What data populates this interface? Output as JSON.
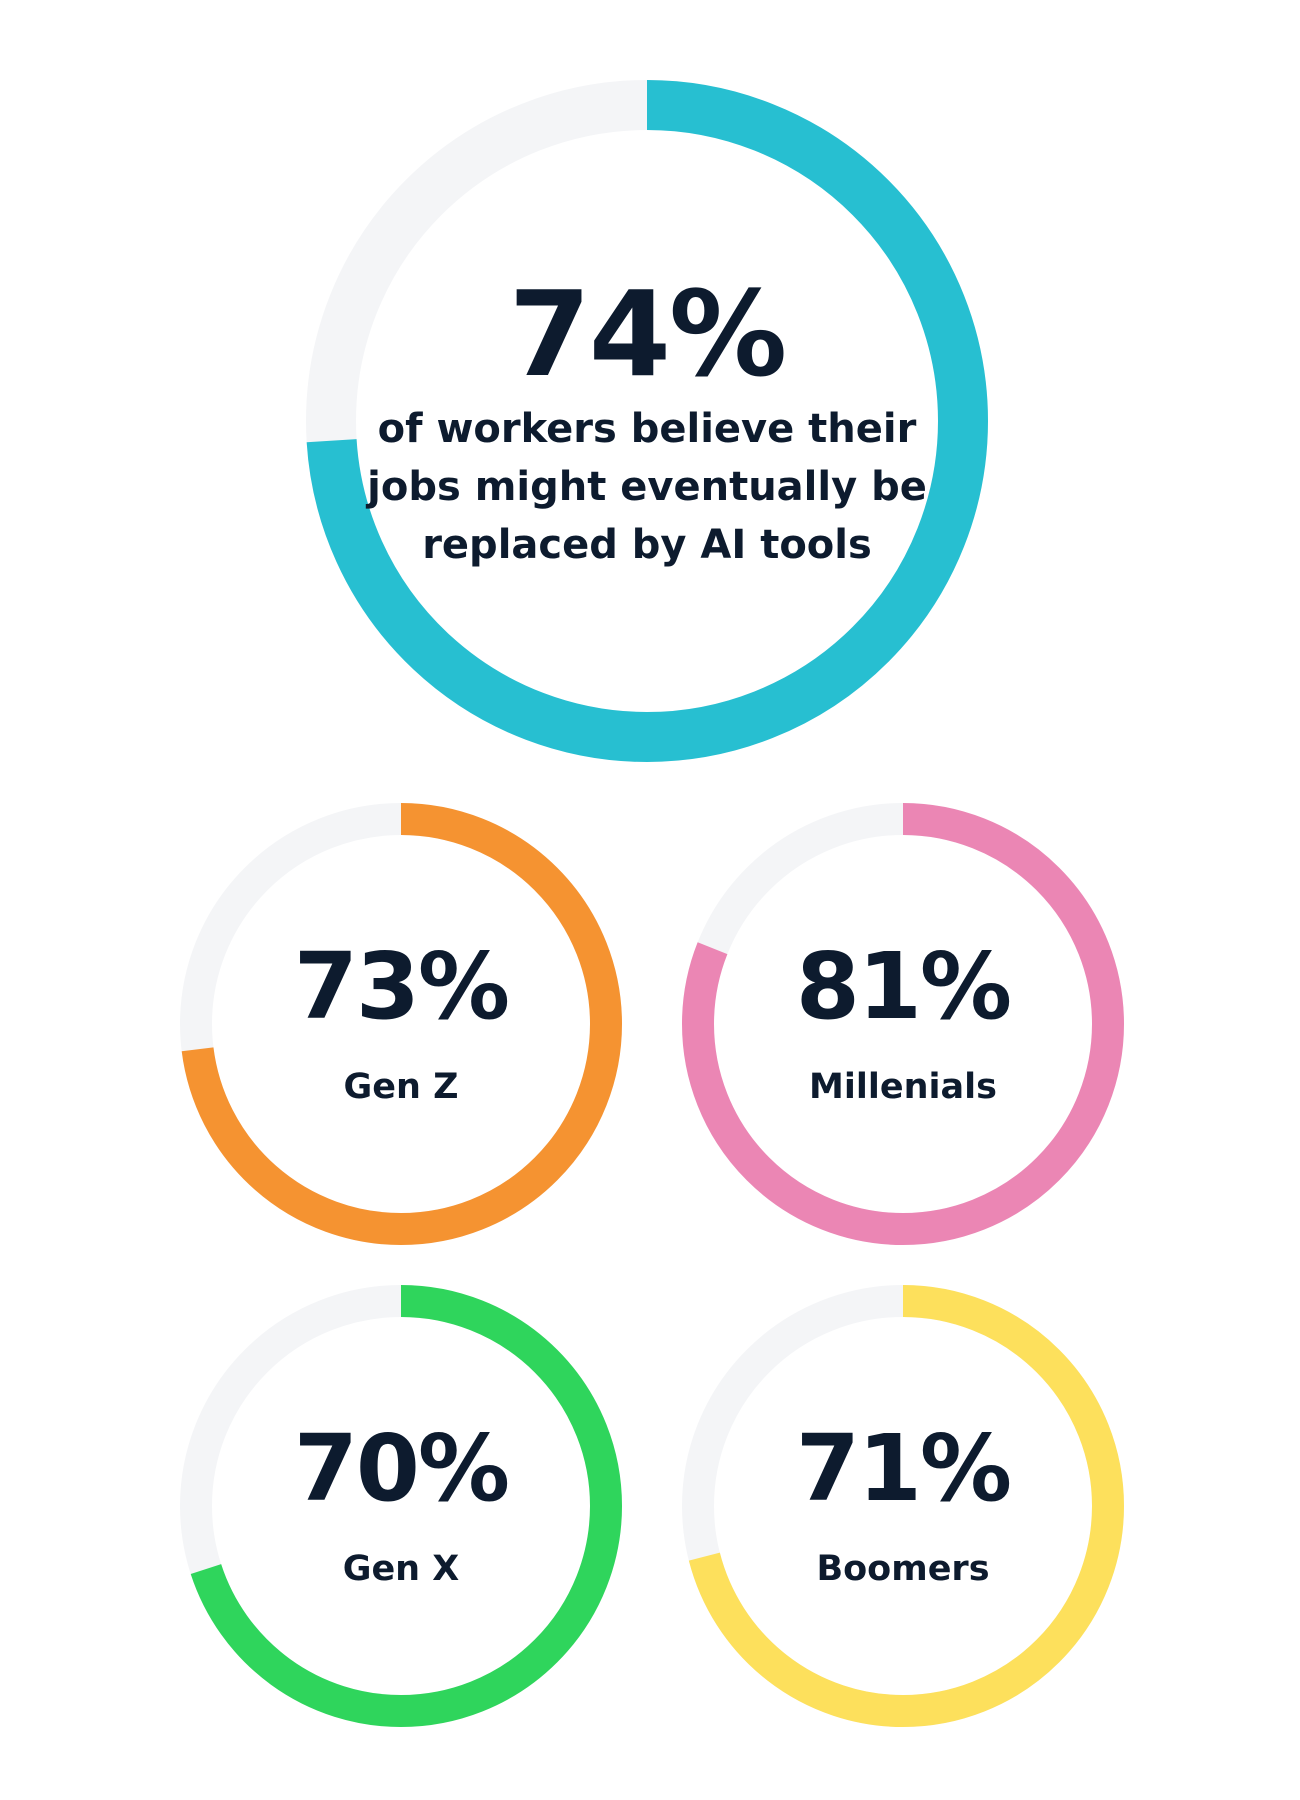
{
  "colors": {
    "track": "#f4f5f7",
    "text": "#0d1b2e"
  },
  "chart_data": [
    {
      "type": "pie",
      "id": "main",
      "value": 74,
      "value_label": "74%",
      "description": "of workers believe their jobs might eventually be replaced by AI tools",
      "color": "#27bfd1"
    },
    {
      "type": "pie",
      "id": "genz",
      "value": 73,
      "value_label": "73%",
      "description": "Gen Z",
      "color": "#f59331"
    },
    {
      "type": "pie",
      "id": "millennials",
      "value": 81,
      "value_label": "81%",
      "description": "Millenials",
      "color": "#eb86b4"
    },
    {
      "type": "pie",
      "id": "genx",
      "value": 70,
      "value_label": "70%",
      "description": "Gen X",
      "color": "#2fd55c"
    },
    {
      "type": "pie",
      "id": "boomers",
      "value": 71,
      "value_label": "71%",
      "description": "Boomers",
      "color": "#fde05c"
    }
  ]
}
